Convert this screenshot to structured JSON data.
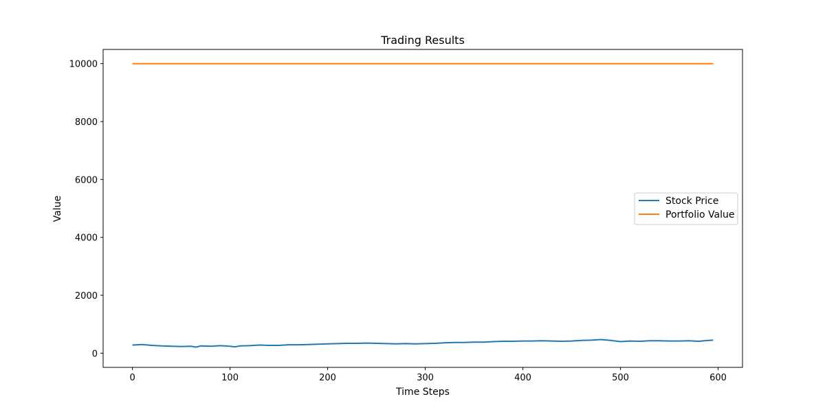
{
  "chart_data": {
    "type": "line",
    "title": "Trading Results",
    "xlabel": "Time Steps",
    "ylabel": "Value",
    "xlim": [
      -30,
      625
    ],
    "ylim": [
      -490,
      10490
    ],
    "xticks": [
      0,
      100,
      200,
      300,
      400,
      500,
      600
    ],
    "yticks": [
      0,
      2000,
      4000,
      6000,
      8000,
      10000
    ],
    "legend_position": "center-right",
    "grid": false,
    "series": [
      {
        "name": "Stock Price",
        "color": "#1f77b4",
        "x": [
          0,
          10,
          20,
          30,
          40,
          50,
          60,
          65,
          70,
          80,
          90,
          100,
          105,
          110,
          120,
          130,
          140,
          150,
          160,
          170,
          180,
          190,
          200,
          210,
          220,
          230,
          240,
          250,
          260,
          270,
          280,
          290,
          300,
          310,
          320,
          330,
          340,
          350,
          360,
          370,
          380,
          390,
          400,
          410,
          420,
          430,
          440,
          450,
          460,
          470,
          480,
          490,
          500,
          510,
          520,
          530,
          540,
          550,
          560,
          570,
          580,
          590,
          595
        ],
        "y": [
          280,
          300,
          270,
          250,
          240,
          230,
          240,
          210,
          250,
          240,
          260,
          240,
          220,
          250,
          260,
          280,
          270,
          270,
          290,
          290,
          300,
          310,
          320,
          330,
          340,
          340,
          350,
          340,
          330,
          320,
          330,
          320,
          330,
          340,
          360,
          370,
          370,
          380,
          380,
          400,
          410,
          410,
          420,
          420,
          430,
          420,
          410,
          420,
          440,
          450,
          470,
          440,
          400,
          420,
          410,
          430,
          430,
          420,
          420,
          430,
          410,
          440,
          450
        ]
      },
      {
        "name": "Portfolio Value",
        "color": "#ff7f0e",
        "x": [
          0,
          595
        ],
        "y": [
          10000,
          10000
        ]
      }
    ]
  }
}
